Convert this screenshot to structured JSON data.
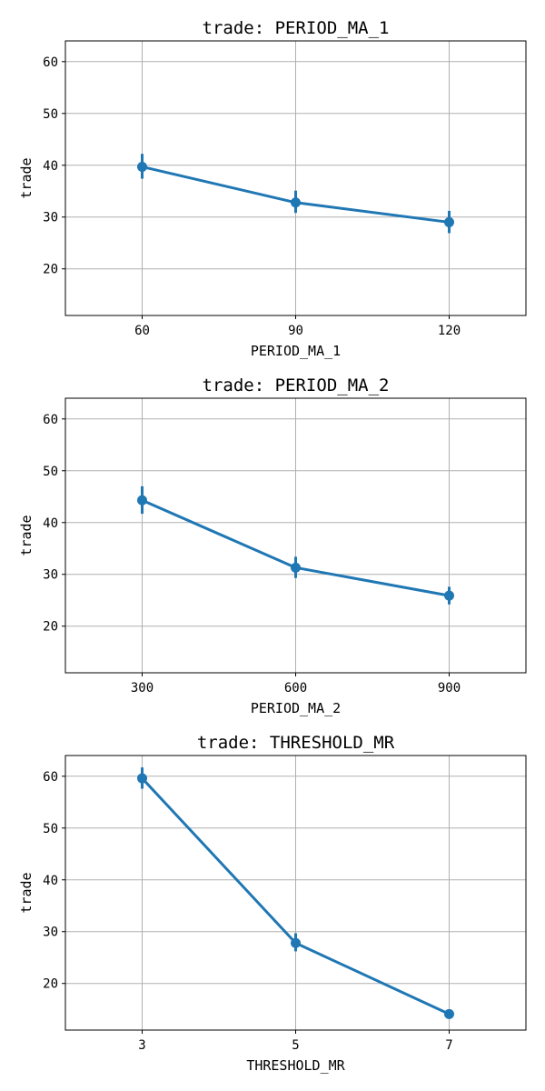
{
  "chart_data": [
    {
      "type": "line",
      "title": "trade: PERIOD_MA_1",
      "xlabel": "PERIOD_MA_1",
      "ylabel": "trade",
      "categories": [
        "60",
        "90",
        "120"
      ],
      "values": [
        39.7,
        32.8,
        29.0
      ],
      "error_low": [
        37.4,
        30.8,
        26.9
      ],
      "error_high": [
        42.2,
        35.1,
        31.2
      ],
      "ylim": [
        11,
        64
      ],
      "yticks": [
        20,
        30,
        40,
        50,
        60
      ],
      "grid": true,
      "color": "#1f77b4"
    },
    {
      "type": "line",
      "title": "trade: PERIOD_MA_2",
      "xlabel": "PERIOD_MA_2",
      "ylabel": "trade",
      "categories": [
        "300",
        "600",
        "900"
      ],
      "values": [
        44.3,
        31.3,
        25.9
      ],
      "error_low": [
        41.7,
        29.3,
        24.2
      ],
      "error_high": [
        47.0,
        33.4,
        27.6
      ],
      "ylim": [
        11,
        64
      ],
      "yticks": [
        20,
        30,
        40,
        50,
        60
      ],
      "grid": true,
      "color": "#1f77b4"
    },
    {
      "type": "line",
      "title": "trade: THRESHOLD_MR",
      "xlabel": "THRESHOLD_MR",
      "ylabel": "trade",
      "categories": [
        "3",
        "5",
        "7"
      ],
      "values": [
        59.6,
        27.8,
        14.1
      ],
      "error_low": [
        57.6,
        26.2,
        13.6
      ],
      "error_high": [
        61.7,
        29.7,
        14.6
      ],
      "ylim": [
        11,
        64
      ],
      "yticks": [
        20,
        30,
        40,
        50,
        60
      ],
      "grid": true,
      "color": "#1f77b4"
    }
  ]
}
